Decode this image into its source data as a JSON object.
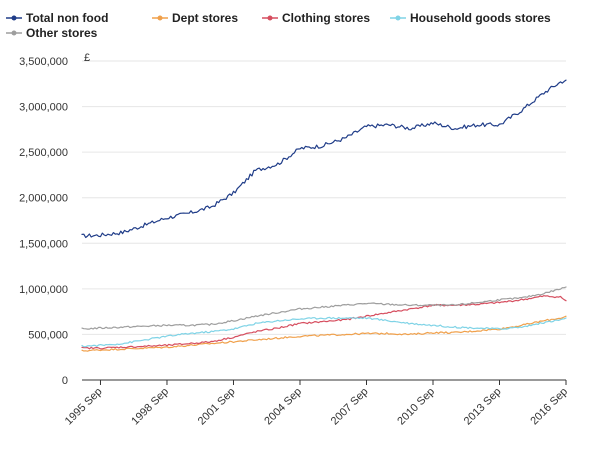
{
  "chart_data": {
    "type": "line",
    "unit_label": "£",
    "ylim": [
      0,
      3500000
    ],
    "y_ticks": [
      "0",
      "500,000",
      "1,000,000",
      "1,500,000",
      "2,000,000",
      "2,500,000",
      "3,000,000",
      "3,500,000"
    ],
    "y_tick_values": [
      0,
      500000,
      1000000,
      1500000,
      2000000,
      2500000,
      3000000,
      3500000
    ],
    "x_ticks": [
      "1995 Sep",
      "1998 Sep",
      "2001 Sep",
      "2004 Sep",
      "2007 Sep",
      "2010 Sep",
      "2013 Sep",
      "2016 Sep"
    ],
    "x_tick_dates": [
      "1995-09",
      "1998-09",
      "2001-09",
      "2004-09",
      "2007-09",
      "2010-09",
      "2013-09",
      "2016-09"
    ],
    "x_range": [
      "1994-11",
      "2016-09"
    ],
    "grid": "horizontal",
    "legend_position": "top-left",
    "x": [
      "1994-11",
      "1995-09",
      "1996-09",
      "1997-09",
      "1998-09",
      "1999-09",
      "2000-09",
      "2001-09",
      "2002-09",
      "2003-09",
      "2004-09",
      "2005-09",
      "2006-09",
      "2007-09",
      "2008-09",
      "2009-09",
      "2010-09",
      "2011-09",
      "2012-09",
      "2013-09",
      "2014-09",
      "2015-09",
      "2016-06",
      "2016-09"
    ],
    "series": [
      {
        "name": "Total non food",
        "color": "#1f3c88",
        "values": [
          1580000,
          1590000,
          1620000,
          1700000,
          1780000,
          1830000,
          1900000,
          2050000,
          2300000,
          2370000,
          2540000,
          2570000,
          2650000,
          2780000,
          2800000,
          2760000,
          2820000,
          2760000,
          2800000,
          2800000,
          2960000,
          3150000,
          3270000,
          3290000
        ]
      },
      {
        "name": "Dept stores",
        "color": "#f0a04b",
        "values": [
          320000,
          330000,
          340000,
          350000,
          360000,
          380000,
          400000,
          420000,
          440000,
          460000,
          480000,
          490000,
          500000,
          510000,
          510000,
          500000,
          520000,
          520000,
          540000,
          560000,
          600000,
          650000,
          680000,
          700000
        ]
      },
      {
        "name": "Clothing stores",
        "color": "#d64e5f",
        "values": [
          350000,
          350000,
          360000,
          370000,
          380000,
          400000,
          420000,
          470000,
          530000,
          570000,
          620000,
          640000,
          660000,
          700000,
          740000,
          780000,
          820000,
          820000,
          830000,
          850000,
          880000,
          920000,
          910000,
          870000
        ]
      },
      {
        "name": "Household goods stores",
        "color": "#7fd3e6",
        "values": [
          370000,
          380000,
          400000,
          440000,
          480000,
          510000,
          530000,
          560000,
          620000,
          650000,
          670000,
          680000,
          680000,
          680000,
          650000,
          620000,
          600000,
          580000,
          570000,
          560000,
          580000,
          630000,
          660000,
          680000
        ]
      },
      {
        "name": "Other stores",
        "color": "#9e9e9e",
        "values": [
          560000,
          570000,
          580000,
          590000,
          600000,
          600000,
          610000,
          650000,
          700000,
          740000,
          780000,
          800000,
          820000,
          840000,
          830000,
          820000,
          820000,
          820000,
          850000,
          880000,
          900000,
          950000,
          1000000,
          1020000
        ]
      }
    ]
  }
}
